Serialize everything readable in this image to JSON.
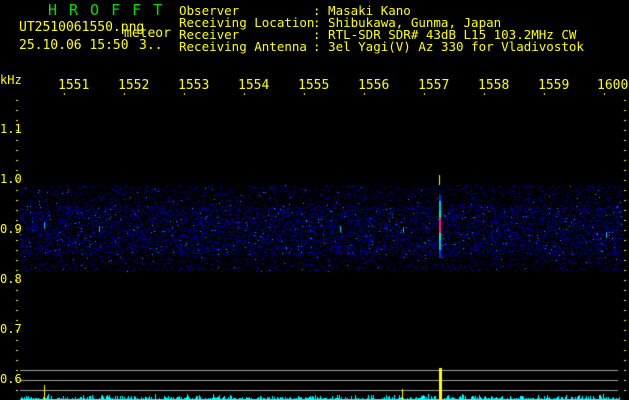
{
  "header": {
    "app_title": "HROFFT",
    "file_name": "UT2510061550.png",
    "event_type": "meteor",
    "datetime": "25.10.06 15:50",
    "count": "3..",
    "info": [
      {
        "label": "Observer",
        "value": ": Masaki Kano"
      },
      {
        "label": "Receiving Location",
        "value": ": Shibukawa, Gunma, Japan"
      },
      {
        "label": "Receiver",
        "value": ": RTL-SDR SDR# 43dB L15 103.2MHz CW"
      },
      {
        "label": "Receiving Antenna",
        "value": ": 3el Yagi(V) Az 330 for Vladivostok"
      }
    ]
  },
  "axes": {
    "y_unit": "kHz",
    "x_ticks": [
      "1551",
      "1552",
      "1553",
      "1554",
      "1555",
      "1556",
      "1557",
      "1558",
      "1559",
      "1600"
    ],
    "y_ticks": [
      "1.1",
      "1.0",
      "0.9",
      "0.8",
      "0.7",
      "0.6"
    ]
  },
  "colors": {
    "text": "#ffff00",
    "title": "#00e000",
    "spectrum": "#00ffff",
    "meteor_peak": "#ffff00",
    "gridline": "#a0a0a0"
  }
}
